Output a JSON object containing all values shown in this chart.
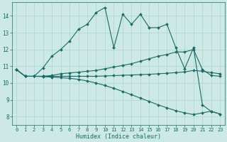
{
  "xlabel": "Humidex (Indice chaleur)",
  "bg_color": "#cce9e5",
  "line_color": "#1a6b65",
  "grid_color": "#aad4ce",
  "xlim": [
    -0.5,
    23.5
  ],
  "ylim": [
    7.5,
    14.8
  ],
  "xticks": [
    0,
    1,
    2,
    3,
    4,
    5,
    6,
    7,
    8,
    9,
    10,
    11,
    12,
    13,
    14,
    15,
    16,
    17,
    18,
    19,
    20,
    21,
    22,
    23
  ],
  "yticks": [
    8,
    9,
    10,
    11,
    12,
    13,
    14
  ],
  "line1_x": [
    0,
    1,
    2,
    3,
    4,
    5,
    6,
    7,
    8,
    9,
    10,
    11,
    12,
    13,
    14,
    15,
    16,
    17,
    18,
    19,
    20,
    21,
    22,
    23
  ],
  "line1_y": [
    10.8,
    10.4,
    10.4,
    10.9,
    11.6,
    12.0,
    12.5,
    13.2,
    13.5,
    14.2,
    14.5,
    12.1,
    14.1,
    13.5,
    14.1,
    13.3,
    13.3,
    13.5,
    12.1,
    10.85,
    12.1,
    8.7,
    8.3,
    8.15
  ],
  "line2_x": [
    0,
    1,
    2,
    3,
    4,
    5,
    6,
    7,
    8,
    9,
    10,
    11,
    12,
    13,
    14,
    15,
    16,
    17,
    18,
    19,
    20,
    21,
    22,
    23
  ],
  "line2_y": [
    10.8,
    10.4,
    10.4,
    10.4,
    10.45,
    10.55,
    10.6,
    10.65,
    10.7,
    10.75,
    10.85,
    10.95,
    11.05,
    11.15,
    11.3,
    11.45,
    11.6,
    11.7,
    11.85,
    11.85,
    12.0,
    10.8,
    10.45,
    10.4
  ],
  "line3_x": [
    0,
    1,
    2,
    3,
    4,
    5,
    6,
    7,
    8,
    9,
    10,
    11,
    12,
    13,
    14,
    15,
    16,
    17,
    18,
    19,
    20,
    21,
    22,
    23
  ],
  "line3_y": [
    10.8,
    10.4,
    10.4,
    10.4,
    10.4,
    10.4,
    10.4,
    10.4,
    10.4,
    10.4,
    10.42,
    10.44,
    10.46,
    10.48,
    10.5,
    10.52,
    10.55,
    10.58,
    10.62,
    10.66,
    10.75,
    10.7,
    10.62,
    10.55
  ],
  "line4_x": [
    0,
    1,
    2,
    3,
    4,
    5,
    6,
    7,
    8,
    9,
    10,
    11,
    12,
    13,
    14,
    15,
    16,
    17,
    18,
    19,
    20,
    21,
    22,
    23
  ],
  "line4_y": [
    10.8,
    10.4,
    10.4,
    10.38,
    10.35,
    10.32,
    10.28,
    10.22,
    10.12,
    10.0,
    9.85,
    9.68,
    9.5,
    9.3,
    9.1,
    8.9,
    8.7,
    8.52,
    8.35,
    8.22,
    8.12,
    8.22,
    8.32,
    8.15
  ]
}
